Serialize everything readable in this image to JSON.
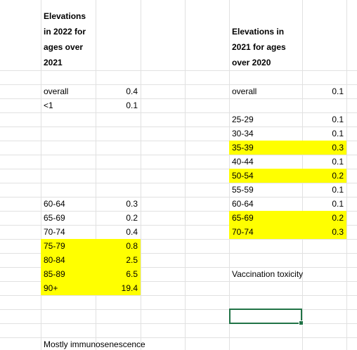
{
  "left_table": {
    "title": "Elevations in 2022  for ages over 2021",
    "rows": [
      {
        "label": "overall",
        "value": 0.4
      },
      {
        "label": "<1",
        "value": 0.1
      },
      {
        "label": "60-64",
        "value": 0.3
      },
      {
        "label": "65-69",
        "value": 0.2
      },
      {
        "label": "70-74",
        "value": 0.4
      },
      {
        "label": "75-79",
        "value": 0.8,
        "highlight": "#ffff00"
      },
      {
        "label": "80-84",
        "value": 2.5,
        "highlight": "#ffff00"
      },
      {
        "label": "85-89",
        "value": 6.5,
        "highlight": "#ffff00"
      },
      {
        "label": "90+",
        "value": 19.4,
        "highlight": "#ffff00"
      }
    ],
    "note": "Mostly immunosenescence"
  },
  "right_table": {
    "title": "Elevations in 2021  for ages over 2020",
    "rows": [
      {
        "label": "overall",
        "value": 0.1
      },
      {
        "label": "25-29",
        "value": 0.1
      },
      {
        "label": "30-34",
        "value": 0.1
      },
      {
        "label": "35-39",
        "value": 0.3,
        "highlight": "#ffff00"
      },
      {
        "label": "40-44",
        "value": 0.1
      },
      {
        "label": "50-54",
        "value": 0.2,
        "highlight": "#ffff00"
      },
      {
        "label": "55-59",
        "value": 0.1
      },
      {
        "label": "60-64",
        "value": 0.1
      },
      {
        "label": "65-69",
        "value": 0.2,
        "highlight": "#ffff00"
      },
      {
        "label": "70-74",
        "value": 0.3,
        "highlight": "#ffff00"
      }
    ],
    "note": "Vaccination toxicity"
  }
}
